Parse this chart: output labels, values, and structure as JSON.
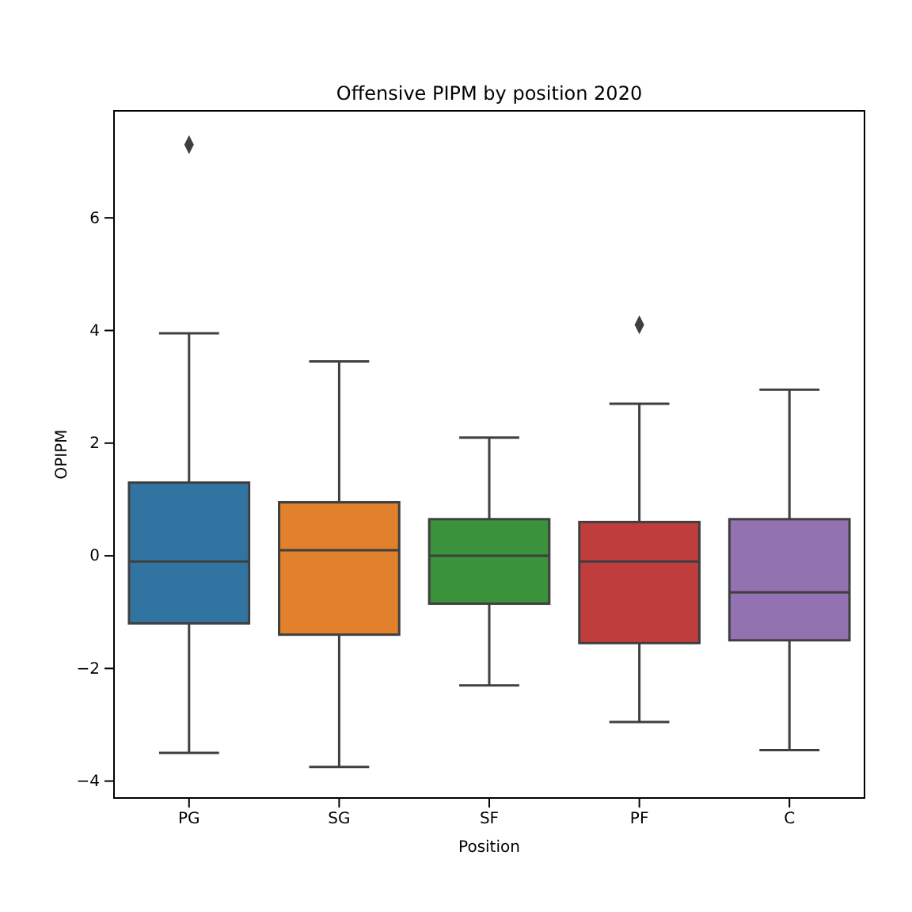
{
  "chart_data": {
    "type": "box",
    "title": "Offensive PIPM by position 2020",
    "xlabel": "Position",
    "ylabel": "OPIPM",
    "categories": [
      "PG",
      "SG",
      "SF",
      "PF",
      "C"
    ],
    "colors": [
      "#3274a1",
      "#e1812c",
      "#3a923a",
      "#c03d3e",
      "#9372b2"
    ],
    "boxes": [
      {
        "low": -3.5,
        "q1": -1.2,
        "median": -0.1,
        "q3": 1.3,
        "high": 3.95,
        "outliers": [
          7.3
        ]
      },
      {
        "low": -3.75,
        "q1": -1.4,
        "median": 0.1,
        "q3": 0.95,
        "high": 3.45
      },
      {
        "low": -2.3,
        "q1": -0.85,
        "median": 0,
        "q3": 0.65,
        "high": 2.1
      },
      {
        "low": -2.95,
        "q1": -1.55,
        "median": -0.1,
        "q3": 0.6,
        "high": 2.7,
        "outliers": [
          4.1
        ]
      },
      {
        "low": -3.45,
        "q1": -1.5,
        "median": -0.65,
        "q3": 0.65,
        "high": 2.95
      }
    ],
    "ylim": [
      -4.3,
      7.9
    ],
    "yticks": [
      {
        "value": -4,
        "label": "−4"
      },
      {
        "value": -2,
        "label": "−2"
      },
      0,
      2,
      4,
      6
    ],
    "grid": false,
    "legend": false
  }
}
